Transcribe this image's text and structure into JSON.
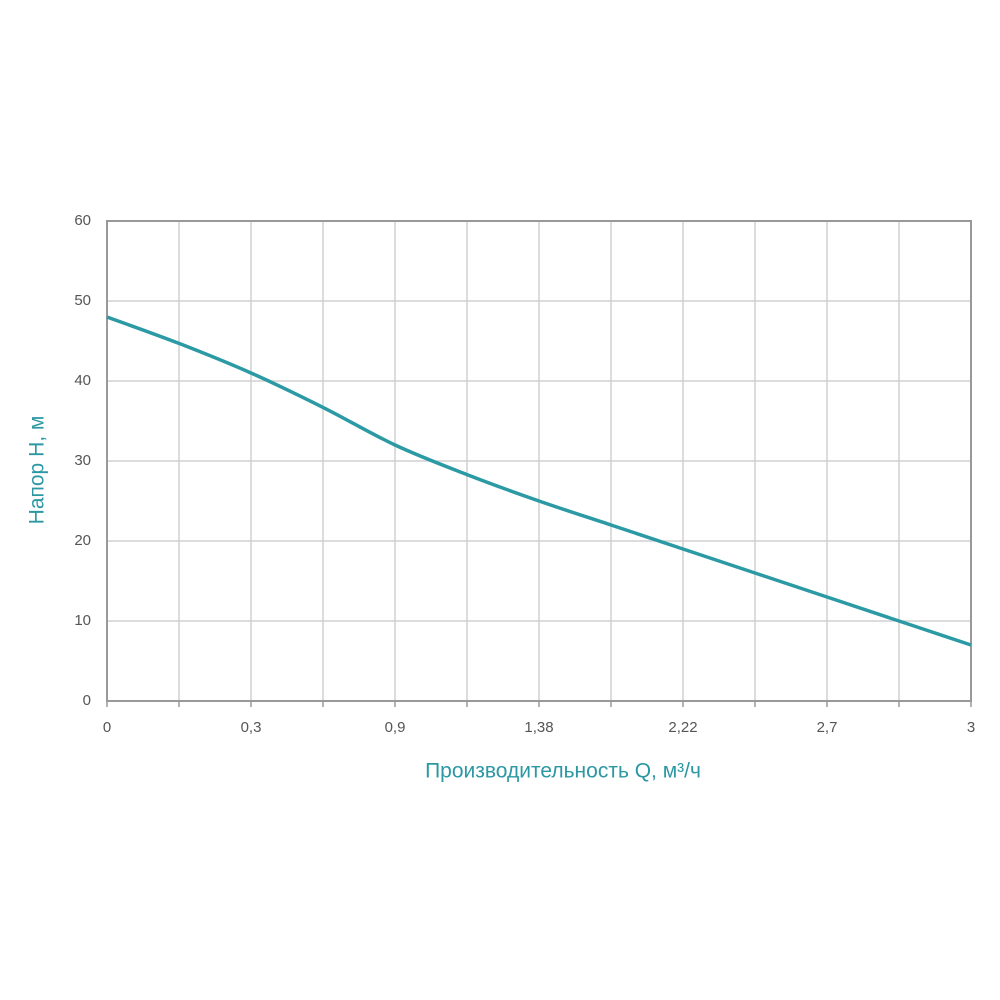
{
  "chart_data": {
    "type": "line",
    "x_label": "Производительность Q, м³/ч",
    "y_label": "Напор H, м",
    "categories": [
      "0",
      null,
      "0,3",
      null,
      "0,9",
      null,
      "1,38",
      null,
      "2,22",
      null,
      "2,7",
      null,
      "3"
    ],
    "values": [
      48,
      44.7,
      41,
      36.7,
      32,
      28.3,
      25,
      22,
      19,
      16,
      13,
      10,
      7
    ],
    "color": "#2b9aa5",
    "ylim": [
      0,
      60
    ],
    "yticks": [
      0,
      10,
      20,
      30,
      40,
      50,
      60
    ],
    "grid": true
  }
}
